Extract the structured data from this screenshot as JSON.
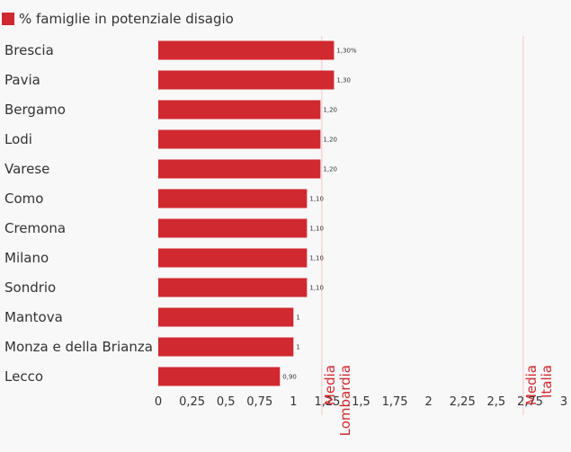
{
  "chart_data": {
    "type": "bar",
    "orientation": "horizontal",
    "categories": [
      "Brescia",
      "Pavia",
      "Bergamo",
      "Lodi",
      "Varese",
      "Como",
      "Cremona",
      "Milano",
      "Sondrio",
      "Mantova",
      "Monza e della Brianza",
      "Lecco"
    ],
    "series": [
      {
        "name": "% famiglie in potenziale disagio",
        "values": [
          1.3,
          1.3,
          1.2,
          1.2,
          1.2,
          1.1,
          1.1,
          1.1,
          1.1,
          1.0,
          1.0,
          0.9
        ],
        "data_labels": [
          "1,30%",
          "1,30",
          "1,20",
          "1,20",
          "1,20",
          "1,10",
          "1,10",
          "1,10",
          "1,10",
          "1",
          "1",
          "0,90"
        ]
      }
    ],
    "xlim": [
      0,
      3
    ],
    "x_ticks": [
      0,
      0.25,
      0.5,
      0.75,
      1,
      1.25,
      1.5,
      1.75,
      2,
      2.25,
      2.5,
      2.75,
      3
    ],
    "x_tick_labels": [
      "0",
      "0,25",
      "0,5",
      "0,75",
      "1",
      "1,25",
      "1,5",
      "1,75",
      "2",
      "2,25",
      "2,5",
      "2,75",
      "3"
    ],
    "reference_lines": [
      {
        "value": 1.21,
        "label_lines": [
          "Media",
          "Lombardia"
        ]
      },
      {
        "value": 2.7,
        "label_lines": [
          "Media",
          "Italia"
        ]
      }
    ],
    "legend": {
      "position": "top-left",
      "label": "% famiglie in potenziale disagio"
    },
    "colors": {
      "bar": "#d0292f",
      "reference_line": "#f3c6c8",
      "reference_label": "#d0292f",
      "category_text": "#333333",
      "tick_text": "#333333",
      "data_label_text": "#333333"
    },
    "grid": false
  }
}
